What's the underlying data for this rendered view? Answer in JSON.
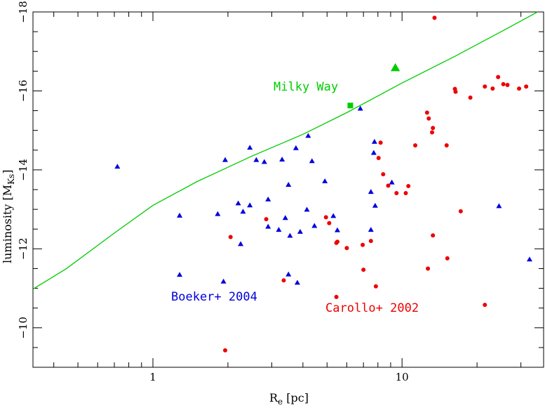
{
  "chart_data": {
    "type": "scatter",
    "title": "",
    "xlabel": {
      "main": "R",
      "sub": "e",
      "rest": " [pc]"
    },
    "ylabel": {
      "main": "luminosity [M",
      "sub": "Ks",
      "rest": "]"
    },
    "x_scale": "log",
    "xlim": [
      0.33,
      37
    ],
    "ylim": [
      -9,
      -18
    ],
    "x_ticks": [
      {
        "value": 1,
        "label": "1"
      },
      {
        "value": 10,
        "label": "10"
      }
    ],
    "y_ticks": [
      {
        "value": -10,
        "label": "−10"
      },
      {
        "value": -12,
        "label": "−12"
      },
      {
        "value": -14,
        "label": "−14"
      },
      {
        "value": -16,
        "label": "−16"
      },
      {
        "value": -18,
        "label": "−18"
      }
    ],
    "colors": {
      "milky_way": "#00cc00",
      "boeker": "#0000dd",
      "carollo": "#ee0000"
    },
    "annotations": {
      "milky_way": "Milky Way",
      "boeker": "Boeker+ 2004",
      "carollo": "Carollo+ 2002"
    },
    "milky_way_line": {
      "x": [
        0.33,
        0.45,
        0.7,
        1.0,
        1.5,
        2.5,
        4,
        6,
        10,
        16,
        25,
        35
      ],
      "y": [
        -10.98,
        -11.5,
        -12.4,
        -13.1,
        -13.7,
        -14.35,
        -14.9,
        -15.45,
        -16.2,
        -16.85,
        -17.5,
        -18.0
      ]
    },
    "milky_way_square": {
      "x": 6.2,
      "y": -15.63
    },
    "milky_way_big_triangle": {
      "x": 9.4,
      "y": -16.58
    },
    "series": [
      {
        "name": "Boeker+ 2004",
        "marker": "triangle",
        "points": [
          [
            0.72,
            -14.08
          ],
          [
            1.28,
            -12.84
          ],
          [
            1.28,
            -11.34
          ],
          [
            1.82,
            -12.88
          ],
          [
            1.92,
            -11.17
          ],
          [
            1.95,
            -14.25
          ],
          [
            2.2,
            -13.15
          ],
          [
            2.25,
            -12.12
          ],
          [
            2.3,
            -12.94
          ],
          [
            2.45,
            -14.56
          ],
          [
            2.45,
            -13.1
          ],
          [
            2.6,
            -14.25
          ],
          [
            2.8,
            -14.2
          ],
          [
            2.9,
            -13.25
          ],
          [
            2.9,
            -12.56
          ],
          [
            3.2,
            -12.48
          ],
          [
            3.3,
            -14.26
          ],
          [
            3.4,
            -12.78
          ],
          [
            3.5,
            -13.62
          ],
          [
            3.5,
            -11.35
          ],
          [
            3.55,
            -12.33
          ],
          [
            3.75,
            -14.55
          ],
          [
            3.8,
            -11.14
          ],
          [
            3.9,
            -12.43
          ],
          [
            4.15,
            -12.99
          ],
          [
            4.2,
            -14.86
          ],
          [
            4.35,
            -14.22
          ],
          [
            4.45,
            -12.58
          ],
          [
            4.9,
            -13.71
          ],
          [
            5.3,
            -12.83
          ],
          [
            5.5,
            -12.47
          ],
          [
            6.8,
            -15.55
          ],
          [
            7.5,
            -13.44
          ],
          [
            7.5,
            -12.48
          ],
          [
            7.7,
            -14.43
          ],
          [
            7.75,
            -14.71
          ],
          [
            7.8,
            -13.09
          ],
          [
            9.1,
            -13.68
          ],
          [
            24.5,
            -13.08
          ],
          [
            32.5,
            -11.73
          ]
        ]
      },
      {
        "name": "Carollo+ 2002",
        "marker": "circle",
        "points": [
          [
            13.5,
            -17.85
          ],
          [
            24.3,
            -16.35
          ],
          [
            25.5,
            -16.17
          ],
          [
            26.5,
            -16.15
          ],
          [
            31.5,
            -16.11
          ],
          [
            29.5,
            -16.06
          ],
          [
            21.5,
            -16.11
          ],
          [
            23.1,
            -16.06
          ],
          [
            16.3,
            -16.05
          ],
          [
            16.4,
            -15.98
          ],
          [
            18.8,
            -15.83
          ],
          [
            12.6,
            -15.45
          ],
          [
            12.8,
            -15.3
          ],
          [
            13.3,
            -15.06
          ],
          [
            13.2,
            -14.95
          ],
          [
            11.3,
            -14.62
          ],
          [
            15.1,
            -14.62
          ],
          [
            8.2,
            -14.69
          ],
          [
            8.05,
            -14.3
          ],
          [
            8.4,
            -13.89
          ],
          [
            8.8,
            -13.6
          ],
          [
            9.5,
            -13.41
          ],
          [
            10.35,
            -13.41
          ],
          [
            10.6,
            -13.59
          ],
          [
            17.2,
            -12.95
          ],
          [
            2.85,
            -12.75
          ],
          [
            4.95,
            -12.8
          ],
          [
            5.1,
            -12.65
          ],
          [
            2.05,
            -12.3
          ],
          [
            5.45,
            -12.15
          ],
          [
            5.5,
            -12.18
          ],
          [
            6.0,
            -12.02
          ],
          [
            6.95,
            -12.1
          ],
          [
            7.5,
            -12.2
          ],
          [
            13.3,
            -12.34
          ],
          [
            12.7,
            -11.5
          ],
          [
            15.2,
            -11.76
          ],
          [
            7.0,
            -11.47
          ],
          [
            3.35,
            -11.2
          ],
          [
            5.45,
            -10.78
          ],
          [
            7.85,
            -11.05
          ],
          [
            21.5,
            -10.58
          ],
          [
            1.95,
            -9.43
          ]
        ]
      }
    ]
  }
}
